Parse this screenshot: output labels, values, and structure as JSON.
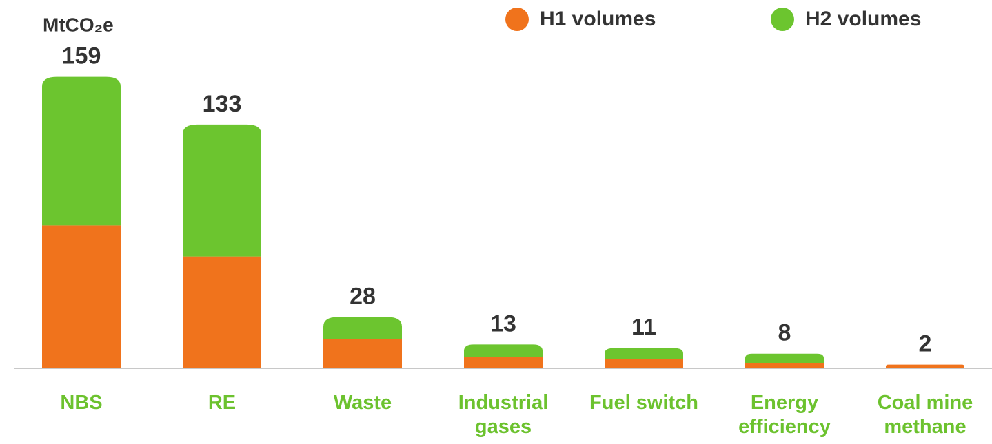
{
  "chart_data": {
    "type": "stacked_bar",
    "y_label": "MtCO₂e",
    "categories": [
      "NBS",
      "RE",
      "Waste",
      "Industrial gases",
      "Fuel switch",
      "Energy efficiency",
      "Coal mine methane"
    ],
    "series": [
      {
        "name": "H1 volumes",
        "color": "#f0731c",
        "values": [
          78,
          61,
          16,
          6,
          5,
          3,
          2
        ]
      },
      {
        "name": "H2 volumes",
        "color": "#6cc52f",
        "values": [
          81,
          72,
          12,
          7,
          6,
          5,
          0
        ]
      }
    ],
    "totals": [
      159,
      133,
      28,
      13,
      11,
      8,
      2
    ],
    "ylim": [
      0,
      160
    ],
    "legend": "top-right"
  }
}
